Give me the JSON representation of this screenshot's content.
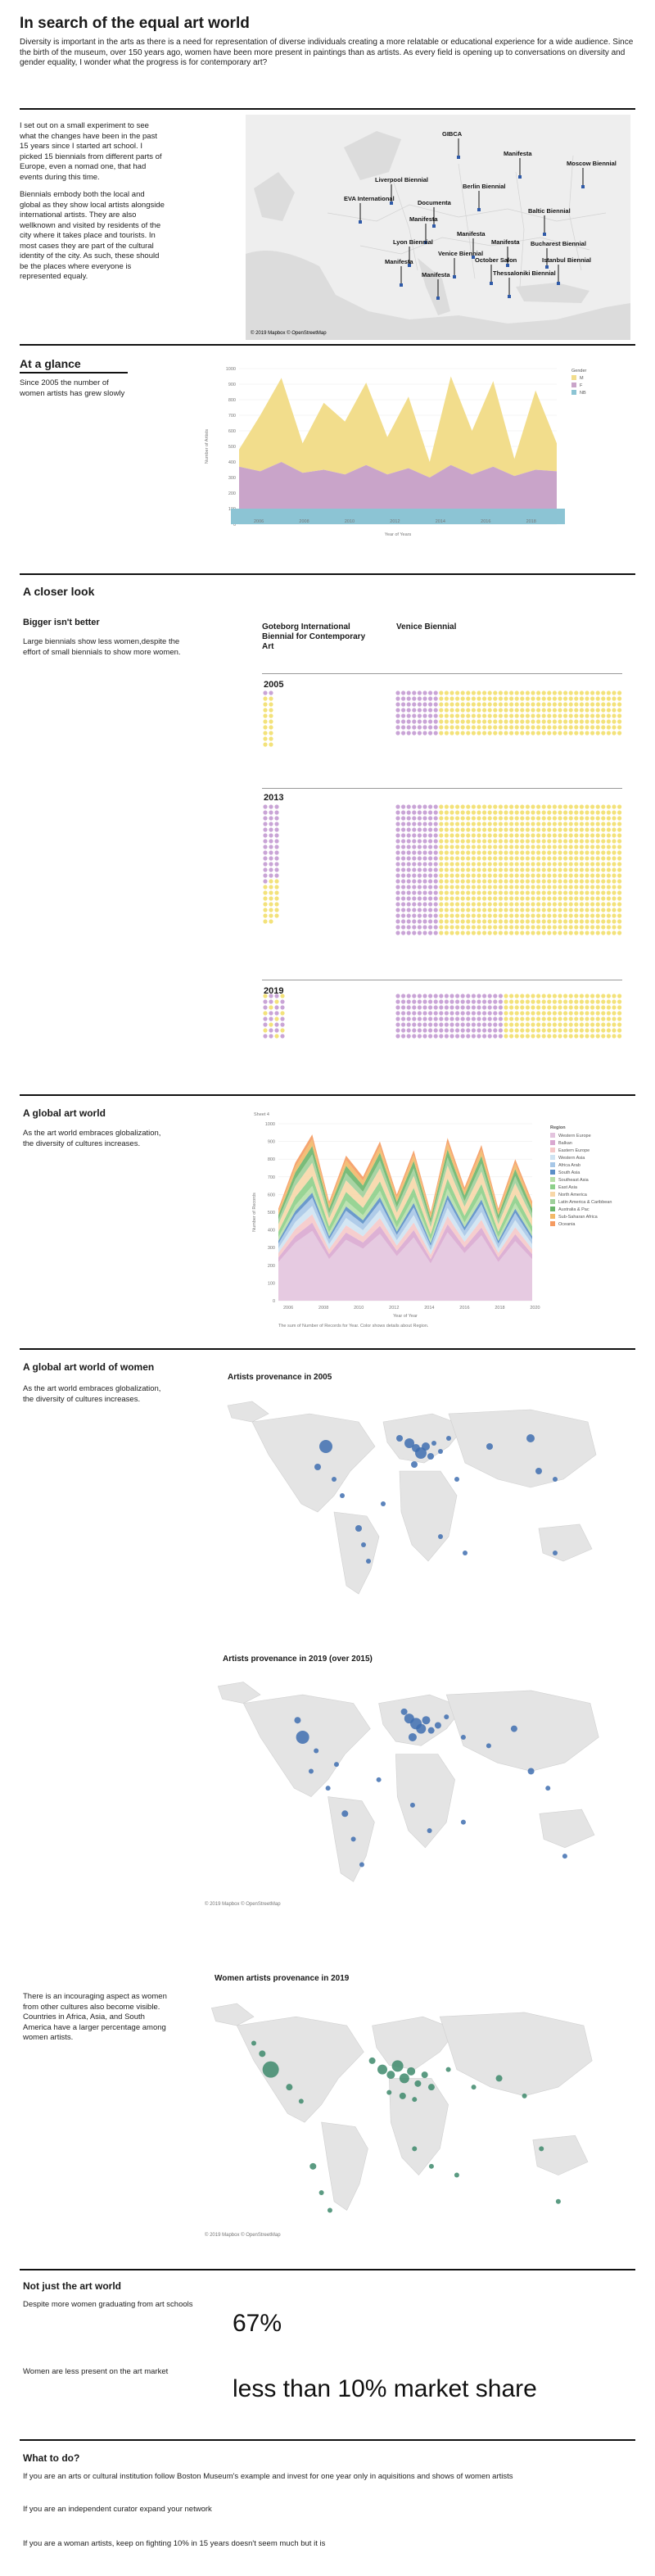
{
  "header": {
    "title": "In search of the equal art world",
    "intro": "Diversity is important in the arts as there is a need for representation of diverse individuals creating a more relatable or educational experience for a wide audience. Since the birth of the museum, over 150 years ago, women have been more present in paintings than as artists. As every field is opening up to conversations on diversity and gender equality, I wonder what the progress is for contemporary art?"
  },
  "experiment": {
    "p1": "I set out on a small experiment to see what the changes have been in the past 15 years since I started art school. I picked 15 biennials from different parts of Europe, even a nomad one, that had events during this time.",
    "p2": "Biennials embody both the local and global as they show local artists alongside international artists. They are also wellknown and visited by residents of the city where it takes place and tourists. In most cases they are part of the cultural identity of the city. As such, these should be the places where everyone is represented equaly.",
    "map_labels": [
      "GIBCA",
      "Manifesta",
      "Moscow Biennial",
      "Liverpool Biennial",
      "EVA International",
      "Berlin Biennial",
      "Documenta",
      "Manifesta",
      "Baltic Biennial",
      "Lyon Biennial",
      "Manifesta",
      "Manifesta",
      "Bucharest Biennial",
      "Venice Biennial",
      "October Salon",
      "Istanbul Biennial",
      "Manifesta",
      "Manifesta",
      "Thessaloniki Biennial"
    ],
    "map_credit": "© 2019 Mapbox © OpenStreetMap"
  },
  "glance": {
    "heading": "At a glance",
    "text": "Since 2005 the number of women artists has grew slowly",
    "legend_title": "Gender",
    "legend_items": [
      "M",
      "F",
      "NB"
    ],
    "colors": {
      "M": "#f2dd8c",
      "F": "#c9a4c9",
      "NB": "#8cc4d4"
    },
    "ylabel": "Number of Artists",
    "xlabel": "Year of Years",
    "x_ticks": [
      "2006",
      "2008",
      "2010",
      "2012",
      "2014",
      "2016",
      "2018"
    ],
    "y_ticks": [
      "1000",
      "900",
      "800",
      "700",
      "600",
      "500",
      "400",
      "300",
      "200",
      "100",
      "0"
    ]
  },
  "closer": {
    "heading": "A closer look",
    "subheading": "Bigger isn't better",
    "text": "Large biennials show less women,despite the effort of small biennials to show more women.",
    "col1": "Goteborg International Biennial for Contemporary Art",
    "col2": "Venice Biennial",
    "years": [
      "2005",
      "2013",
      "2019"
    ]
  },
  "global_art": {
    "heading": "A global art world",
    "text": "As the art world embraces globalization, the diversity of cultures increases.",
    "sheet": "Sheet 4",
    "legend_title": "Region",
    "regions": [
      "Western Europe",
      "Balkan",
      "Eastern Europe",
      "Western Asia",
      "Africa Arab",
      "South Asia",
      "Southeast Asia",
      "East Asia",
      "North America",
      "Latin America & Caribbean",
      "Australia & Pac",
      "Sub-Saharan Africa",
      "Oceania"
    ],
    "region_colors": [
      "#e3c4de",
      "#d9a8d0",
      "#f5c9c9",
      "#cfe3f2",
      "#a7c7e7",
      "#5b8fc7",
      "#b7dfa8",
      "#8dcf8a",
      "#f7d7a8",
      "#9ecf9a",
      "#6bb56b",
      "#f2b968",
      "#f59b61"
    ],
    "ylabel": "Number of Records",
    "xlabel": "Year of Year",
    "note": "The sum of Number of Records for Year. Color shows details about Region.",
    "x_ticks": [
      "2006",
      "2008",
      "2010",
      "2012",
      "2014",
      "2016",
      "2018",
      "2020"
    ],
    "y_ticks": [
      "1000",
      "900",
      "800",
      "700",
      "600",
      "500",
      "400",
      "300",
      "200",
      "100",
      "0"
    ]
  },
  "women_world": {
    "heading": "A global art world of women",
    "text": "As the art world embraces globalization, the diversity of cultures increases.",
    "map1_title": "Artists provenance in 2005",
    "map2_title": "Artists provenance in 2019 (over 2015)",
    "map3_title": "Women artists provenance in 2019",
    "map3_text": "There is an incouraging aspect as women from other cultures also become visible. Countries in Africa, Asia, and South America have a larger percentage among women artists.",
    "credit": "© 2019 Mapbox © OpenStreetMap"
  },
  "not_just": {
    "heading": "Not just the art world",
    "row1_text": "Despite more women graduating from art schools",
    "row1_stat": "67%",
    "row2_text": "Women are less present on the art market",
    "row2_stat": "less than 10% market share"
  },
  "todo": {
    "heading": "What to do?",
    "items": [
      "If you are an arts or cultural institution follow Boston Museum's example and invest for one year only in aquisitions and shows of women artists",
      "If you are an independent curator expand your network",
      "If you are a woman artists, keep on fighting 10% in 15 years doesn't seem much but it is"
    ]
  }
}
